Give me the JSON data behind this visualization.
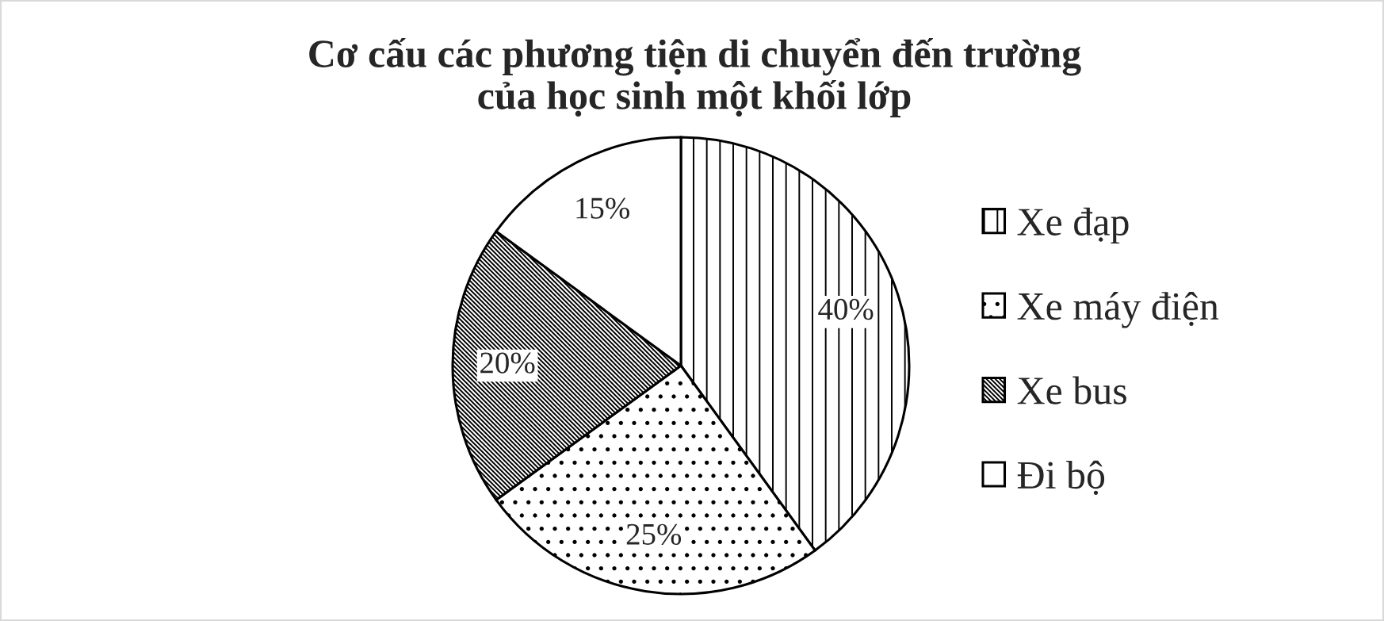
{
  "chart_data": {
    "type": "pie",
    "title": "Cơ cấu các phương tiện di chuyển đến trường\ncủa học sinh một khối lớp",
    "categories": [
      "Xe đạp",
      "Xe máy điện",
      "Xe bus",
      "Đi bộ"
    ],
    "values": [
      40,
      25,
      20,
      15
    ],
    "colors": [
      "#000000",
      "#000000",
      "#000000",
      "#ffffff"
    ],
    "value_labels": [
      "40%",
      "25%",
      "20%",
      "15%"
    ],
    "legend": "right"
  }
}
